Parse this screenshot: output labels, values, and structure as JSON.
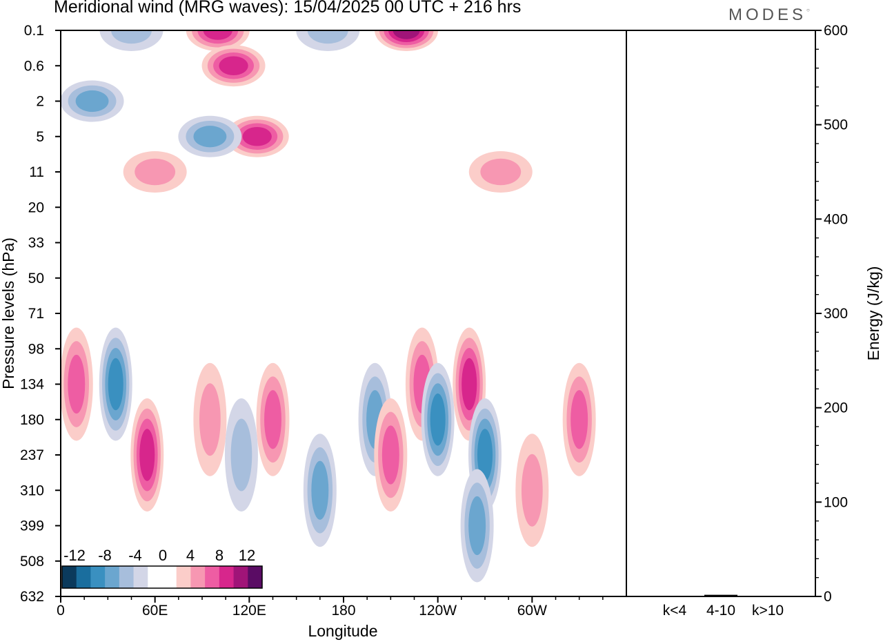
{
  "header": {
    "title": "Meridional wind (MRG waves):  15/04/2025  00 UTC  + 216 hrs",
    "brand": "MODES"
  },
  "colors": {
    "neg": [
      "#0b3a5c",
      "#1a6e9e",
      "#3a90c0",
      "#6ba6cf",
      "#a7bedc",
      "#d3d6e7"
    ],
    "pos": [
      "#fbcdc9",
      "#f797b2",
      "#ee5da3",
      "#d7268c",
      "#a01478",
      "#5a0c64"
    ]
  },
  "chart_data": [
    {
      "type": "heatmap",
      "xlabel": "Longitude",
      "ylabel": "Pressure levels (hPa)",
      "x_ticks": [
        "0",
        "60E",
        "120E",
        "180",
        "120W",
        "60W"
      ],
      "y_ticks": [
        "0.1",
        "0.6",
        "2",
        "5",
        "11",
        "20",
        "33",
        "50",
        "71",
        "98",
        "134",
        "180",
        "237",
        "310",
        "399",
        "508",
        "632"
      ],
      "colorbar": {
        "labels": [
          "-12",
          "-8",
          "-4",
          "0",
          "4",
          "8",
          "12"
        ],
        "levels": [
          -14,
          -12,
          -10,
          -8,
          -6,
          -4,
          -2,
          2,
          4,
          6,
          8,
          10,
          12,
          14
        ]
      },
      "features": [
        {
          "lon": 45,
          "level": "0.1",
          "v": -3
        },
        {
          "lon": 20,
          "level": "2",
          "v": -6
        },
        {
          "lon": 100,
          "level": "0.1",
          "v": 8
        },
        {
          "lon": 110,
          "level": "0.6",
          "v": 7
        },
        {
          "lon": 125,
          "level": "5",
          "v": 8
        },
        {
          "lon": 170,
          "level": "0.1",
          "v": -3
        },
        {
          "lon": 220,
          "level": "0.1",
          "v": 9
        },
        {
          "lon": 95,
          "level": "5",
          "v": -5
        },
        {
          "lon": 60,
          "level": "11",
          "v": 3
        },
        {
          "lon": 280,
          "level": "11",
          "v": 3
        },
        {
          "lon": 35,
          "level": "134",
          "v": -7
        },
        {
          "lon": 10,
          "level": "134",
          "v": 5
        },
        {
          "lon": 55,
          "level": "237",
          "v": 8
        },
        {
          "lon": 95,
          "level": "180",
          "v": 3
        },
        {
          "lon": 115,
          "level": "237",
          "v": -4
        },
        {
          "lon": 135,
          "level": "180",
          "v": 5
        },
        {
          "lon": 165,
          "level": "310",
          "v": -5
        },
        {
          "lon": 200,
          "level": "180",
          "v": -5
        },
        {
          "lon": 210,
          "level": "237",
          "v": 6
        },
        {
          "lon": 230,
          "level": "134",
          "v": 5
        },
        {
          "lon": 240,
          "level": "180",
          "v": -8
        },
        {
          "lon": 260,
          "level": "134",
          "v": 8
        },
        {
          "lon": 270,
          "level": "237",
          "v": -7
        },
        {
          "lon": 265,
          "level": "399",
          "v": -5
        },
        {
          "lon": 300,
          "level": "310",
          "v": 3
        },
        {
          "lon": 330,
          "level": "180",
          "v": 5
        }
      ]
    },
    {
      "type": "bar",
      "ylabel": "Energy (J/kg)",
      "categories": [
        "k<4",
        "4-10",
        "k>10"
      ],
      "values": [
        0,
        1,
        0
      ],
      "ylim": [
        0,
        600
      ],
      "y_ticks": [
        "0",
        "100",
        "200",
        "300",
        "400",
        "500",
        "600"
      ]
    }
  ]
}
